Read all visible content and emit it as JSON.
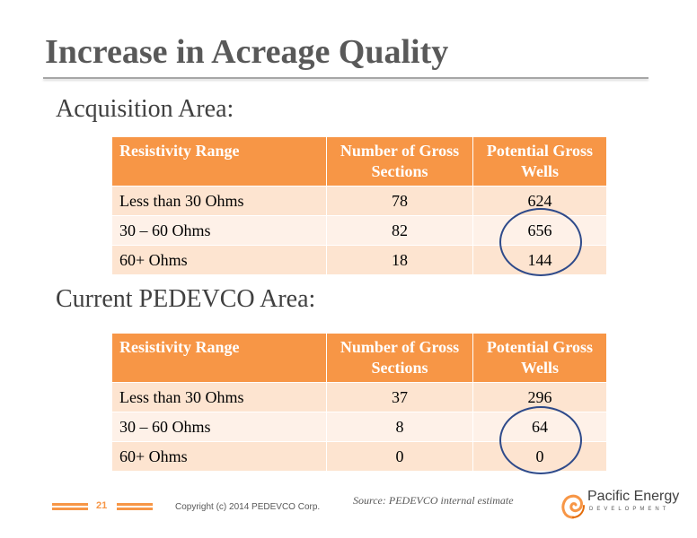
{
  "slide": {
    "title": "Increase in Acreage Quality",
    "page_number": "21",
    "copyright": "Copyright (c) 2014 PEDEVCO Corp.",
    "source": "Source: PEDEVCO internal estimate"
  },
  "logo": {
    "name": "Pacific Energy",
    "tagline": "DEVELOPMENT",
    "accent_color": "#f79646"
  },
  "sections": [
    {
      "heading": "Acquisition Area:",
      "columns": [
        "Resistivity Range",
        "Number of Gross Sections",
        "Potential Gross Wells"
      ],
      "rows": [
        [
          "Less than 30 Ohms",
          "78",
          "624"
        ],
        [
          "30 – 60 Ohms",
          "82",
          "656"
        ],
        [
          "60+ Ohms",
          "18",
          "144"
        ]
      ]
    },
    {
      "heading": "Current PEDEVCO Area:",
      "columns": [
        "Resistivity Range",
        "Number of Gross Sections",
        "Potential Gross Wells"
      ],
      "rows": [
        [
          "Less than 30 Ohms",
          "37",
          "296"
        ],
        [
          "30 – 60 Ohms",
          "8",
          "64"
        ],
        [
          "60+ Ohms",
          "0",
          "0"
        ]
      ]
    }
  ],
  "colors": {
    "header": "#f79646",
    "row_odd": "#fde4d0",
    "row_even": "#fef1e8",
    "highlight_circle": "#2e4a8a"
  }
}
